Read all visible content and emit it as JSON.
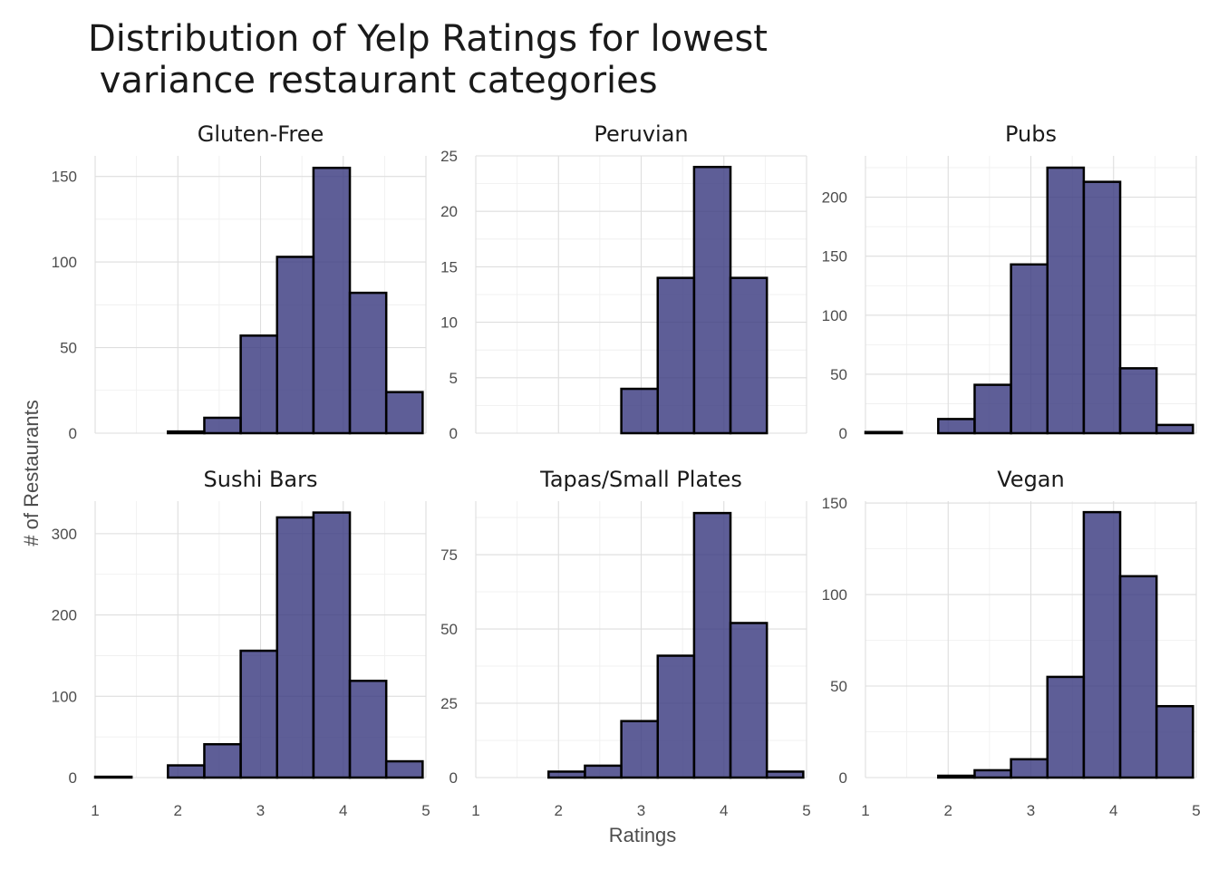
{
  "chart_data": {
    "type": "bar",
    "title": "Distribution of Yelp Ratings for lowest\n variance restaurant categories",
    "xlabel": "Ratings",
    "ylabel": "# of Restaurants",
    "bin_centers": [
      1.22,
      1.66,
      2.1,
      2.54,
      2.98,
      3.42,
      3.86,
      4.3,
      4.74
    ],
    "bin_width": 0.44,
    "xlim": [
      1.0,
      5.0
    ],
    "xticks": [
      1,
      2,
      3,
      4,
      5
    ],
    "grid": true,
    "colors": {
      "bar_fill": "#3b3a80",
      "bar_stroke": "#000000"
    },
    "panels": [
      {
        "name": "Gluten-Free",
        "values": [
          0,
          0,
          1,
          9,
          57,
          103,
          155,
          82,
          24
        ],
        "ylim": [
          0,
          162
        ],
        "yticks": [
          0,
          50,
          100,
          150
        ]
      },
      {
        "name": "Peruvian",
        "values": [
          0,
          0,
          0,
          0,
          4,
          14,
          24,
          14,
          0
        ],
        "ylim": [
          0,
          25
        ],
        "yticks": [
          0,
          5,
          10,
          15,
          20,
          25
        ]
      },
      {
        "name": "Pubs",
        "values": [
          1,
          0,
          12,
          41,
          143,
          225,
          213,
          55,
          7
        ],
        "ylim": [
          0,
          235
        ],
        "yticks": [
          0,
          50,
          100,
          150,
          200
        ]
      },
      {
        "name": "Sushi Bars",
        "values": [
          1,
          0,
          15,
          41,
          156,
          320,
          326,
          119,
          20
        ],
        "ylim": [
          0,
          340
        ],
        "yticks": [
          0,
          100,
          200,
          300
        ]
      },
      {
        "name": "Tapas/Small Plates",
        "values": [
          0,
          0,
          2,
          4,
          19,
          41,
          89,
          52,
          2
        ],
        "ylim": [
          0,
          93
        ],
        "yticks": [
          0,
          25,
          50,
          75
        ]
      },
      {
        "name": "Vegan",
        "values": [
          0,
          0,
          1,
          4,
          10,
          55,
          145,
          110,
          39
        ],
        "ylim": [
          0,
          151
        ],
        "yticks": [
          0,
          50,
          100,
          150
        ]
      }
    ]
  }
}
